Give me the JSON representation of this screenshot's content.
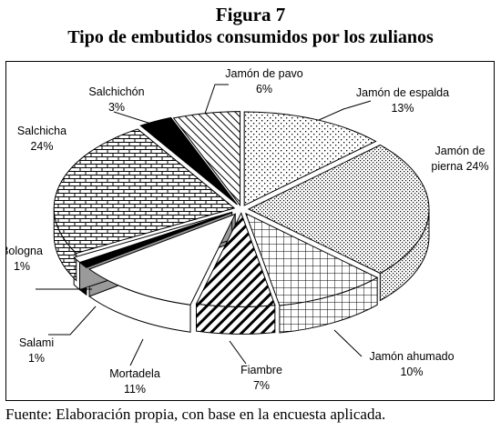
{
  "figure": {
    "label": "Figura 7",
    "title": "Tipo de embutidos consumidos por los zulianos",
    "source": "Fuente: Elaboración propia, con base en la encuesta aplicada."
  },
  "chart_data": {
    "type": "pie",
    "style": "3d-exploded",
    "title": "Tipo de embutidos consumidos por los zulianos",
    "slices": [
      {
        "name": "Jamón de espalda",
        "value": 13,
        "label": "13%",
        "pattern": "dots-sparse"
      },
      {
        "name": "Jamón de pierna",
        "value": 24,
        "label": "24%",
        "pattern": "dots-dense"
      },
      {
        "name": "Jamón ahumado",
        "value": 10,
        "label": "10%",
        "pattern": "grid"
      },
      {
        "name": "Fiambre",
        "value": 7,
        "label": "7%",
        "pattern": "diagonal-wide"
      },
      {
        "name": "Mortadela",
        "value": 11,
        "label": "11%",
        "pattern": "white"
      },
      {
        "name": "Salami",
        "value": 1,
        "label": "1%",
        "pattern": "black"
      },
      {
        "name": "Bologna",
        "value": 1,
        "label": "1%",
        "pattern": "white"
      },
      {
        "name": "Salchicha",
        "value": 24,
        "label": "24%",
        "pattern": "brick"
      },
      {
        "name": "Salchichón",
        "value": 3,
        "label": "3%",
        "pattern": "black"
      },
      {
        "name": "Jamón de pavo",
        "value": 6,
        "label": "6%",
        "pattern": "diagonal-thin"
      }
    ],
    "labels": [
      {
        "slice": 0,
        "lines": [
          "Jamón de espalda",
          "13%"
        ]
      },
      {
        "slice": 1,
        "lines": [
          "Jamón de",
          "pierna 24%"
        ]
      },
      {
        "slice": 2,
        "lines": [
          "Jamón ahumado",
          "10%"
        ]
      },
      {
        "slice": 3,
        "lines": [
          "Fiambre",
          "7%"
        ]
      },
      {
        "slice": 4,
        "lines": [
          "Mortadela",
          "11%"
        ]
      },
      {
        "slice": 5,
        "lines": [
          "Salami",
          "1%"
        ]
      },
      {
        "slice": 6,
        "lines": [
          "Bologna",
          "1%"
        ]
      },
      {
        "slice": 7,
        "lines": [
          "Salchicha",
          "24%"
        ]
      },
      {
        "slice": 8,
        "lines": [
          "Salchichón",
          "3%"
        ]
      },
      {
        "slice": 9,
        "lines": [
          "Jamón de pavo",
          "6%"
        ]
      }
    ],
    "legend": "none",
    "colors": {
      "stroke": "#000000",
      "side_gray": "#9a9a9a",
      "dark": "#000000",
      "light": "#ffffff"
    }
  }
}
